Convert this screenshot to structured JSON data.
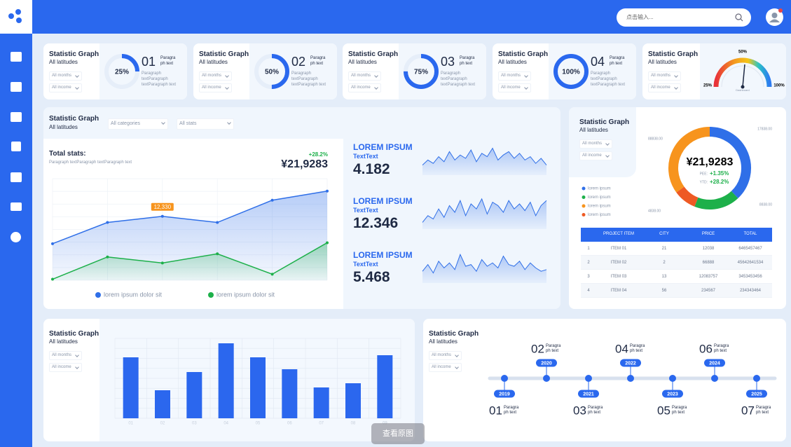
{
  "header": {
    "search_placeholder": "点击输入..."
  },
  "kpi_cards": [
    {
      "title": "Statistic Graph",
      "subtitle": "All latitudes",
      "filters": [
        "All months",
        "All income"
      ],
      "ring": {
        "value": 25,
        "label": "25%"
      },
      "number": "01",
      "caption": "Paragra ph text",
      "text": "Paragraph textParagraph textParagraph text"
    },
    {
      "title": "Statistic Graph",
      "subtitle": "All latitudes",
      "filters": [
        "All months",
        "All income"
      ],
      "ring": {
        "value": 50,
        "label": "50%"
      },
      "number": "02",
      "caption": "Paragra ph text",
      "text": "Paragraph textParagraph textParagraph text"
    },
    {
      "title": "Statistic Graph",
      "subtitle": "All latitudes",
      "filters": [
        "All months",
        "All income"
      ],
      "ring": {
        "value": 75,
        "label": "75%"
      },
      "number": "03",
      "caption": "Paragra ph text",
      "text": "Paragraph textParagraph textParagraph text"
    },
    {
      "title": "Statistic Graph",
      "subtitle": "All latitudes",
      "filters": [
        "All months",
        "All income"
      ],
      "ring": {
        "value": 100,
        "label": "100%"
      },
      "number": "04",
      "caption": "Paragra ph text",
      "text": "Paragraph textParagraph textParagraph text"
    }
  ],
  "gauge_card": {
    "title": "Statistic Graph",
    "subtitle": "All latitudes",
    "filters": [
      "All months",
      "All income"
    ],
    "left_label": "25%",
    "top_label": "50%",
    "right_label": "100%",
    "caption": "Dashboard"
  },
  "overview": {
    "title": "Statistic Graph",
    "subtitle": "All latitudes",
    "filters": [
      "All categories",
      "All stats"
    ],
    "total_label": "Total stats:",
    "total_text": "Paragraph textParagraph textParagraph text",
    "change": "+28.2%",
    "amount": "¥21,9283",
    "chart": {
      "type": "line",
      "ylim": [
        0,
        19600
      ],
      "series": [
        {
          "name": "lorem ipsum dolor sit",
          "color": "#2f6fe8",
          "values": [
            7050,
            11150,
            12330,
            11150,
            15450,
            17200
          ],
          "value_labels": [
            null,
            null,
            "12,330",
            null,
            null,
            null
          ]
        },
        {
          "name": "lorem ipsum dolor sit",
          "color": "#1db04a",
          "values": [
            200,
            4500,
            3330,
            5100,
            1170,
            7240
          ]
        }
      ]
    }
  },
  "metrics": {
    "ylim": [
      0,
      100
    ],
    "items": [
      {
        "title": "LOREM IPSUM",
        "subtitle": "TextText",
        "value": "4.182",
        "sparkline": [
          30,
          45,
          35,
          55,
          40,
          70,
          45,
          60,
          50,
          75,
          40,
          65,
          55,
          80,
          45,
          60,
          70,
          50,
          65,
          45,
          55,
          35,
          50,
          30
        ]
      },
      {
        "title": "LOREM IPSUM",
        "subtitle": "TextText",
        "value": "12.346",
        "sparkline": [
          20,
          40,
          30,
          60,
          35,
          70,
          50,
          85,
          40,
          75,
          60,
          90,
          45,
          80,
          70,
          50,
          85,
          60,
          75,
          55,
          80,
          40,
          70,
          85
        ]
      },
      {
        "title": "LOREM IPSUM",
        "subtitle": "TextText",
        "value": "5.468",
        "sparkline": [
          35,
          55,
          30,
          65,
          45,
          60,
          40,
          85,
          50,
          55,
          35,
          70,
          50,
          60,
          45,
          80,
          55,
          50,
          65,
          40,
          60,
          45,
          35,
          40
        ]
      }
    ]
  },
  "share": {
    "title": "Statistic Graph",
    "subtitle": "All latitudes",
    "filters": [
      "All months",
      "All income"
    ],
    "amount": "¥21,9283",
    "pee_label": "PEE:",
    "pee": "+1.35%",
    "ytd_label": "YTD:",
    "ytd": "+28.2%",
    "top_left": "88838.00",
    "top_right": "17838.00",
    "bottom_left": "4838.00",
    "bottom_right": "8838.00",
    "legend": [
      {
        "name": "lorem ipsum",
        "color": "#2f6fe8"
      },
      {
        "name": "lorem ipsum",
        "color": "#1db04a"
      },
      {
        "name": "lorem ipsum",
        "color": "#f7941d"
      },
      {
        "name": "lorem ipsum",
        "color": "#ee5a24"
      }
    ],
    "donut": [
      {
        "color": "#2f6fe8",
        "value": 38
      },
      {
        "color": "#1db04a",
        "value": 18
      },
      {
        "color": "#ee5a24",
        "value": 9
      },
      {
        "color": "#f7941d",
        "value": 35
      }
    ]
  },
  "table": {
    "columns": [
      "PROJECT ITEM",
      "CITY",
      "PRICE",
      "TOTAL"
    ],
    "rows": [
      [
        "1",
        "ITEM 01",
        "21",
        "12038",
        "6465457467"
      ],
      [
        "2",
        "ITEM 02",
        "2",
        "66888",
        "45642641534"
      ],
      [
        "3",
        "ITEM 03",
        "13",
        "12083757",
        "3453453456"
      ],
      [
        "4",
        "ITEM 04",
        "56",
        "234567",
        "234343464"
      ]
    ]
  },
  "bars": {
    "title": "Statistic Graph",
    "subtitle": "All latitudes",
    "filters": [
      "All months",
      "All income"
    ],
    "chart": {
      "type": "bar",
      "categories": [
        "01",
        "02",
        "03",
        "04",
        "05",
        "06",
        "07",
        "08",
        "09"
      ],
      "values": [
        87,
        40,
        66,
        107,
        87,
        70,
        44,
        50,
        90
      ],
      "ylim": [
        0,
        114
      ],
      "color": "#2b67ee"
    }
  },
  "timeline": {
    "title": "Statistic Graph",
    "subtitle": "All latitudes",
    "filters": [
      "All months",
      "All income"
    ],
    "milestones": [
      {
        "number": "01",
        "caption": "Paragra ph text",
        "year": "2019"
      },
      {
        "number": "02",
        "caption": "Paragra ph text",
        "year": "2020"
      },
      {
        "number": "03",
        "caption": "Paragra ph text",
        "year": "2021"
      },
      {
        "number": "04",
        "caption": "Paragra ph text",
        "year": "2022"
      },
      {
        "number": "05",
        "caption": "Paragra ph text",
        "year": "2023"
      },
      {
        "number": "06",
        "caption": "Paragra ph text",
        "year": "2024"
      },
      {
        "number": "07",
        "caption": "Paragra ph text",
        "year": "2025"
      }
    ]
  },
  "overlay_button": "查看原图"
}
